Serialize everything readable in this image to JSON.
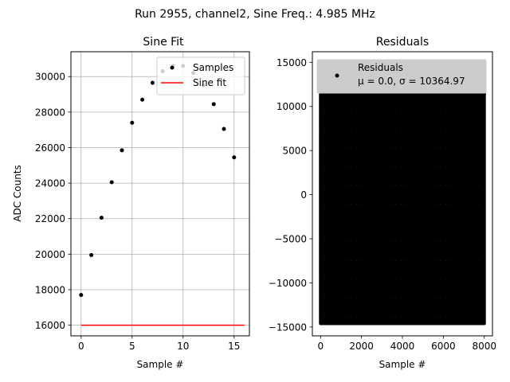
{
  "suptitle": "Run 2955, channel2, Sine Freq.: 4.985 MHz",
  "chart_data": [
    {
      "type": "scatter",
      "title": "Sine Fit",
      "xlabel": "Sample #",
      "ylabel": "ADC Counts",
      "xlim": [
        -1,
        16.5
      ],
      "ylim": [
        15400,
        31400
      ],
      "xticks": [
        0,
        5,
        10,
        15
      ],
      "yticks": [
        16000,
        18000,
        20000,
        22000,
        24000,
        26000,
        28000,
        30000
      ],
      "grid": true,
      "legend": "top-right",
      "series": [
        {
          "name": "Samples",
          "kind": "scatter",
          "color": "#000000",
          "x": [
            0,
            1,
            2,
            3,
            4,
            5,
            6,
            7,
            8,
            9,
            10,
            11,
            12,
            13,
            14,
            15
          ],
          "y": [
            17700,
            19950,
            22050,
            24050,
            25850,
            27400,
            28700,
            29650,
            30300,
            30600,
            30600,
            30200,
            29500,
            28450,
            27050,
            25450
          ]
        },
        {
          "name": "Sine fit",
          "kind": "line",
          "color": "#ff0000",
          "x": [
            0,
            16
          ],
          "y": [
            16000,
            16000
          ]
        }
      ]
    },
    {
      "type": "scatter",
      "title": "Residuals",
      "xlabel": "Sample #",
      "ylabel": "",
      "xlim": [
        -400,
        8400
      ],
      "ylim": [
        -16000,
        16200
      ],
      "xticks": [
        0,
        2000,
        4000,
        6000,
        8000
      ],
      "yticks": [
        -15000,
        -10000,
        -5000,
        0,
        5000,
        10000,
        15000
      ],
      "grid": false,
      "legend": "top",
      "series": [
        {
          "name": "Residuals",
          "kind": "scatter-band",
          "color": "#000000",
          "x_range": [
            0,
            8000
          ],
          "y_range": [
            -14600,
            14600
          ]
        }
      ],
      "legend_stats": "μ = 0.0, σ = 10364.97"
    }
  ]
}
